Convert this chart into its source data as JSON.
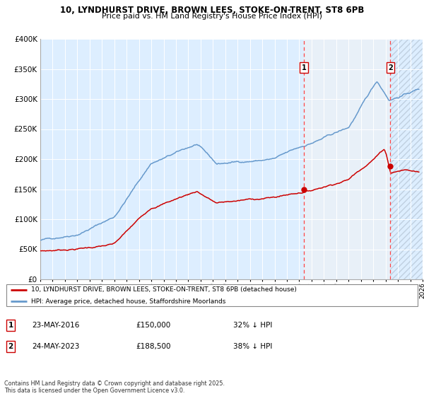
{
  "title1": "10, LYNDHURST DRIVE, BROWN LEES, STOKE-ON-TRENT, ST8 6PB",
  "title2": "Price paid vs. HM Land Registry's House Price Index (HPI)",
  "legend_label_red": "10, LYNDHURST DRIVE, BROWN LEES, STOKE-ON-TRENT, ST8 6PB (detached house)",
  "legend_label_blue": "HPI: Average price, detached house, Staffordshire Moorlands",
  "annotation1_label": "1",
  "annotation1_date": "23-MAY-2016",
  "annotation1_price": "£150,000",
  "annotation1_hpi": "32% ↓ HPI",
  "annotation2_label": "2",
  "annotation2_date": "24-MAY-2023",
  "annotation2_price": "£188,500",
  "annotation2_hpi": "38% ↓ HPI",
  "footer": "Contains HM Land Registry data © Crown copyright and database right 2025.\nThis data is licensed under the Open Government Licence v3.0.",
  "red_color": "#cc0000",
  "blue_color": "#6699cc",
  "bg_color": "#ddeeff",
  "grid_color": "#ffffff",
  "vline1_x": 2016.39,
  "vline2_x": 2023.39,
  "marker1_x": 2016.39,
  "marker1_y": 150000,
  "marker2_x": 2023.39,
  "marker2_y": 188500,
  "xmin": 1995,
  "xmax": 2026,
  "ymin": 0,
  "ymax": 400000,
  "yticks": [
    0,
    50000,
    100000,
    150000,
    200000,
    250000,
    300000,
    350000,
    400000
  ]
}
